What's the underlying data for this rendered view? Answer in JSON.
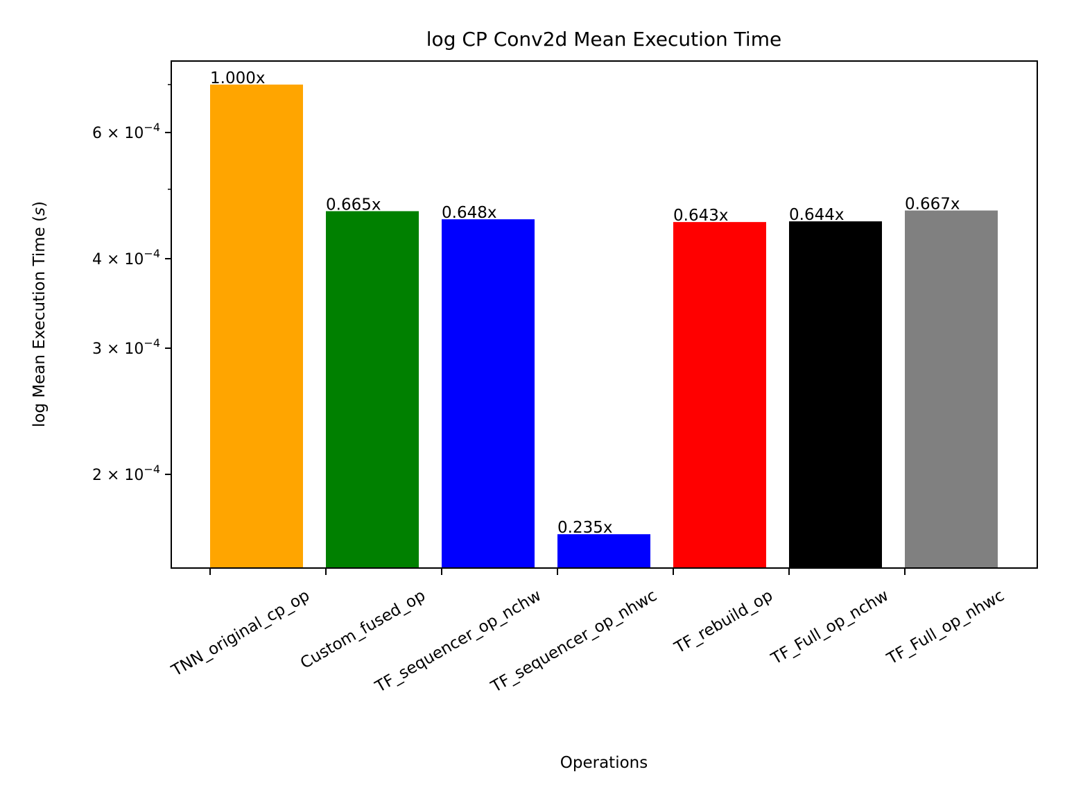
{
  "chart_data": {
    "type": "bar",
    "title": "log CP Conv2d Mean Execution Time",
    "xlabel": "Operations",
    "ylabel": "log  Mean Execution Time (s)",
    "yscale": "log",
    "ylim": [
      0.000148,
      0.000755
    ],
    "categories": [
      "TNN_original_cp_op",
      "Custom_fused_op",
      "TF_sequencer_op_nchw",
      "TF_sequencer_op_nhwc",
      "TF_rebuild_op",
      "TF_Full_op_nchw",
      "TF_Full_op_nhwc"
    ],
    "values": [
      0.0007,
      0.000466,
      0.000454,
      0.000165,
      0.00045,
      0.000451,
      0.000467
    ],
    "data_labels": [
      "1.000x",
      "0.665x",
      "0.648x",
      "0.235x",
      "0.643x",
      "0.644x",
      "0.667x"
    ],
    "colors": [
      "#ffa500",
      "#008000",
      "#0000ff",
      "#0000ff",
      "#ff0000",
      "#000000",
      "#808080"
    ],
    "major_ticks": [
      {
        "value": 0.0002,
        "mantissa": "2",
        "exponent": "−4"
      },
      {
        "value": 0.0003,
        "mantissa": "3",
        "exponent": "−4"
      },
      {
        "value": 0.0004,
        "mantissa": "4",
        "exponent": "−4"
      },
      {
        "value": 0.0006,
        "mantissa": "6",
        "exponent": "−4"
      }
    ],
    "minor_ticks": [
      0.0005,
      0.0007
    ],
    "grid": false,
    "legend": "none"
  }
}
